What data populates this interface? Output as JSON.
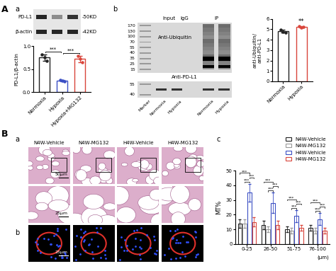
{
  "panel_labels": [
    "A",
    "a",
    "b",
    "B",
    "a",
    "b",
    "c"
  ],
  "blot_a": {
    "rows": [
      "PD-L1",
      "β-actin"
    ],
    "sizes": [
      "-50KD",
      "-42KD"
    ]
  },
  "blot_b": {
    "groups": [
      "Input",
      "IgG",
      "IP"
    ],
    "lanes": [
      "Marker",
      "Normoxia",
      "Hypoxia",
      "Normoxia",
      "Hypoxia"
    ],
    "ladder_upper": [
      170,
      130,
      100,
      70,
      55,
      40,
      35,
      25,
      15
    ],
    "ladder_lower": [
      55,
      40
    ],
    "probes": [
      "Anti-Ubiquitin",
      "Anti-PD-L1"
    ]
  },
  "histology": {
    "columns": [
      "N4W-Vehicle",
      "N4W-MG132",
      "H4W-Vehicle",
      "H4W-MG132"
    ],
    "scale_bars": [
      "50μm",
      "25μm",
      "25μm"
    ]
  },
  "chart_data": [
    {
      "type": "bar",
      "categories": [
        "Normoxia",
        "Hypoxia",
        "Hypoxia+MG132"
      ],
      "values": [
        0.75,
        0.25,
        0.72
      ],
      "errors": [
        0.07,
        0.02,
        0.07
      ],
      "points": [
        [
          0.82,
          0.75,
          0.68
        ],
        [
          0.27,
          0.25,
          0.23
        ],
        [
          0.79,
          0.72,
          0.65
        ]
      ],
      "colors": [
        "#222222",
        "#3b4fc4",
        "#d9453b"
      ],
      "ylabel": "PD-L1/β-actin",
      "ylim": [
        0.0,
        1.0
      ],
      "yticks": [
        0.0,
        0.5,
        1.0
      ],
      "significance": [
        {
          "pair": [
            "Normoxia",
            "Hypoxia"
          ],
          "text": "***"
        },
        {
          "pair": [
            "Hypoxia",
            "Hypoxia+MG132"
          ],
          "text": "***"
        }
      ]
    },
    {
      "type": "bar",
      "categories": [
        "Normoxia",
        "Hypoxia"
      ],
      "values": [
        4.82,
        5.25
      ],
      "errors": [
        0.12,
        0.08
      ],
      "points": [
        [
          4.95,
          4.78,
          4.72
        ],
        [
          5.32,
          5.2,
          5.22
        ]
      ],
      "colors": [
        "#222222",
        "#d9453b"
      ],
      "ylabel": "anti-Ubiquitin/\nanti-PD-L1",
      "ylim": [
        0,
        6
      ],
      "yticks": [
        0,
        1,
        2,
        3,
        4,
        5,
        6
      ],
      "annotations": [
        {
          "category": "Hypoxia",
          "text": "**"
        }
      ]
    },
    {
      "type": "bar",
      "categories": [
        "0-25",
        "26-50",
        "51-75",
        "76-100"
      ],
      "xlabel": "(μm)",
      "ylabel": "MT%",
      "ylim": [
        0,
        50
      ],
      "yticks": [
        0,
        10,
        20,
        30,
        40,
        50
      ],
      "legend": "upper right",
      "series": [
        {
          "name": "N4W-Vehicle",
          "color": "#222222",
          "values": [
            14,
            13,
            10,
            11
          ],
          "errors": [
            3,
            3,
            2,
            2
          ]
        },
        {
          "name": "N4W-MG132",
          "color": "#999999",
          "values": [
            14,
            10,
            9,
            9
          ],
          "errors": [
            3,
            2,
            2,
            2
          ]
        },
        {
          "name": "H4W-Vehicle",
          "color": "#3b4fc4",
          "values": [
            35,
            28,
            19,
            17
          ],
          "errors": [
            6,
            7,
            4,
            4
          ]
        },
        {
          "name": "H4W-MG132",
          "color": "#d9453b",
          "values": [
            15,
            13,
            11,
            9
          ],
          "errors": [
            3,
            3,
            2,
            2
          ]
        }
      ],
      "significance": [
        {
          "group": "0-25",
          "pair": [
            "N4W-Vehicle",
            "H4W-Vehicle"
          ],
          "text": "***"
        },
        {
          "group": "0-25",
          "pair": [
            "N4W-MG132",
            "H4W-Vehicle"
          ],
          "text": "***"
        },
        {
          "group": "0-25",
          "pair": [
            "H4W-Vehicle",
            "H4W-MG132"
          ],
          "text": "***"
        },
        {
          "group": "26-50",
          "pair": [
            "N4W-Vehicle",
            "H4W-Vehicle"
          ],
          "text": "***"
        },
        {
          "group": "26-50",
          "pair": [
            "N4W-MG132",
            "H4W-Vehicle"
          ],
          "text": "***"
        },
        {
          "group": "26-50",
          "pair": [
            "H4W-Vehicle",
            "H4W-MG132"
          ],
          "text": "***"
        },
        {
          "group": "51-75",
          "pair": [
            "N4W-Vehicle",
            "H4W-Vehicle"
          ],
          "text": "***"
        },
        {
          "group": "51-75",
          "pair": [
            "N4W-MG132",
            "H4W-Vehicle"
          ],
          "text": "***"
        },
        {
          "group": "51-75",
          "pair": [
            "H4W-Vehicle",
            "H4W-MG132"
          ],
          "text": "***"
        },
        {
          "group": "76-100",
          "pair": [
            "N4W-Vehicle",
            "H4W-Vehicle"
          ],
          "text": "***"
        },
        {
          "group": "76-100",
          "pair": [
            "N4W-MG132",
            "H4W-Vehicle"
          ],
          "text": "***"
        },
        {
          "group": "76-100",
          "pair": [
            "H4W-Vehicle",
            "H4W-MG132"
          ],
          "text": "***"
        }
      ]
    }
  ]
}
